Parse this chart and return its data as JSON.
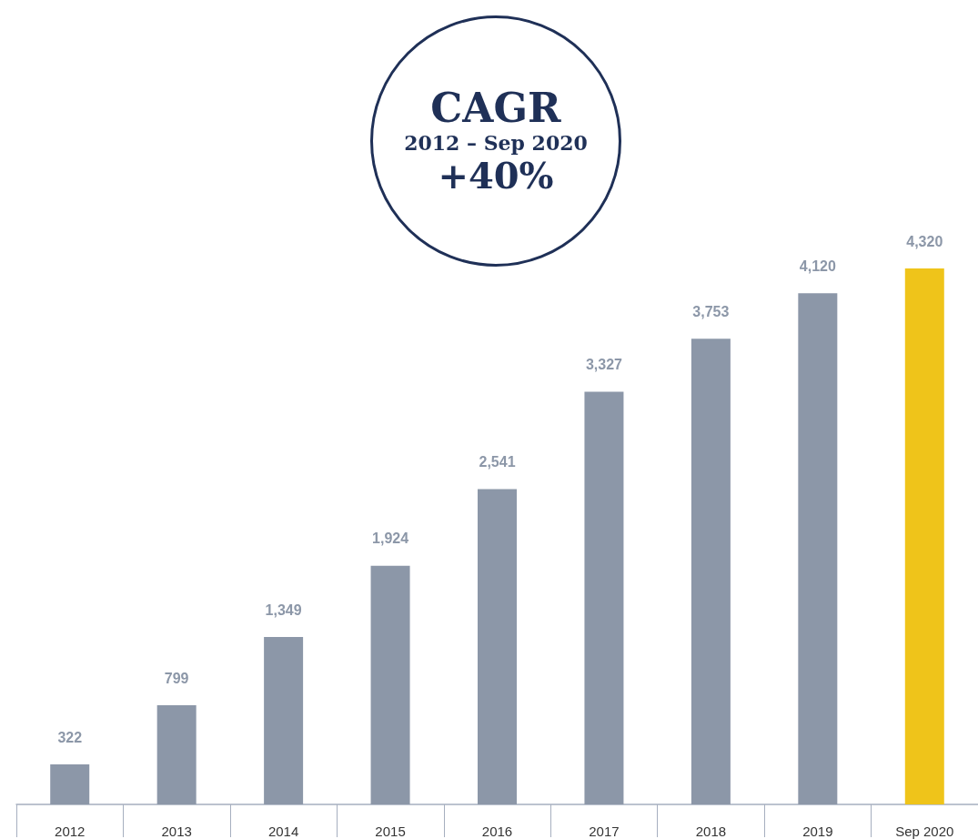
{
  "chart_data": {
    "type": "bar",
    "categories": [
      "2012",
      "2013",
      "2014",
      "2015",
      "2016",
      "2017",
      "2018",
      "2019",
      "Sep 2020"
    ],
    "values": [
      322,
      799,
      1349,
      1924,
      2541,
      3327,
      3753,
      4120,
      4320
    ],
    "value_labels": [
      "322",
      "799",
      "1,349",
      "1,924",
      "2,541",
      "3,327",
      "3,753",
      "4,120",
      "4,320"
    ],
    "colors": [
      "#8c97a8",
      "#8c97a8",
      "#8c97a8",
      "#8c97a8",
      "#8c97a8",
      "#8c97a8",
      "#8c97a8",
      "#8c97a8",
      "#efc41a"
    ],
    "annotations": [
      "CAGR",
      "2012 – Sep 2020",
      "+40%"
    ]
  }
}
